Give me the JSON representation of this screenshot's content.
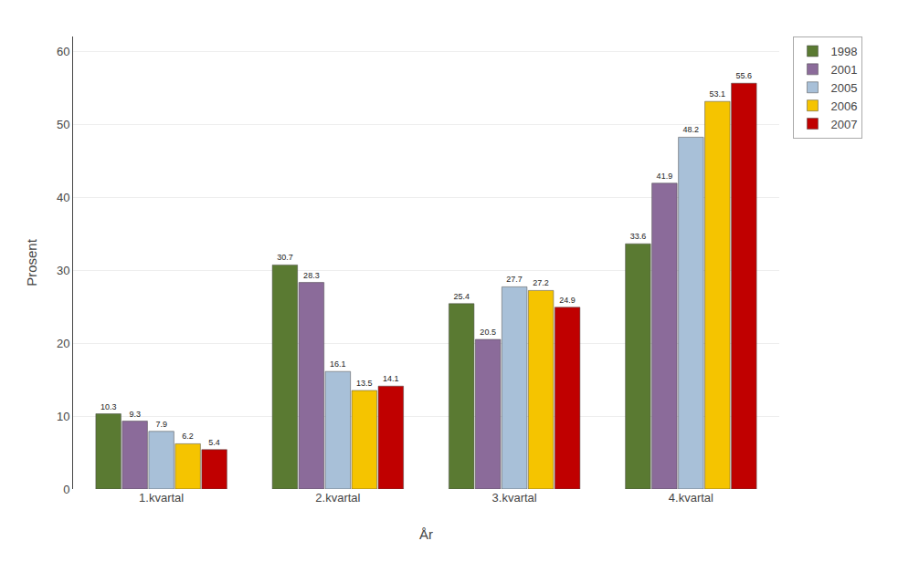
{
  "chart_data": {
    "type": "bar",
    "categories": [
      "1.kvartal",
      "2.kvartal",
      "3.kvartal",
      "4.kvartal"
    ],
    "series": [
      {
        "name": "1998",
        "color": "#5a7a32",
        "values": [
          10.3,
          30.7,
          25.4,
          33.6
        ]
      },
      {
        "name": "2001",
        "color": "#8b6b9a",
        "values": [
          9.3,
          28.3,
          20.5,
          41.9
        ]
      },
      {
        "name": "2005",
        "color": "#a8c0d8",
        "values": [
          7.9,
          16.1,
          27.7,
          48.2
        ]
      },
      {
        "name": "2006",
        "color": "#f5c400",
        "values": [
          6.2,
          13.5,
          27.2,
          53.1
        ]
      },
      {
        "name": "2007",
        "color": "#c00000",
        "values": [
          5.4,
          14.1,
          24.9,
          55.6
        ]
      }
    ],
    "xlabel": "År",
    "ylabel": "Prosent",
    "ylim": [
      0,
      62
    ],
    "yticks": [
      0,
      10,
      20,
      30,
      40,
      50,
      60
    ],
    "grid": true,
    "legend": "right",
    "data_labels": true
  }
}
